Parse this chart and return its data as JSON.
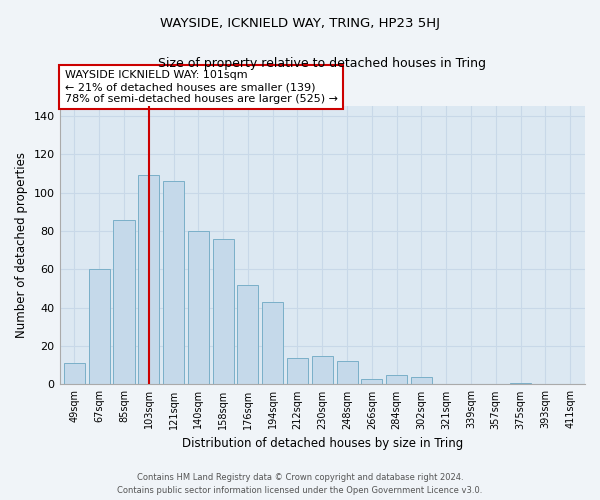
{
  "title": "WAYSIDE, ICKNIELD WAY, TRING, HP23 5HJ",
  "subtitle": "Size of property relative to detached houses in Tring",
  "xlabel": "Distribution of detached houses by size in Tring",
  "ylabel": "Number of detached properties",
  "bar_labels": [
    "49sqm",
    "67sqm",
    "85sqm",
    "103sqm",
    "121sqm",
    "140sqm",
    "158sqm",
    "176sqm",
    "194sqm",
    "212sqm",
    "230sqm",
    "248sqm",
    "266sqm",
    "284sqm",
    "302sqm",
    "321sqm",
    "339sqm",
    "357sqm",
    "375sqm",
    "393sqm",
    "411sqm"
  ],
  "bar_values": [
    11,
    60,
    86,
    109,
    106,
    80,
    76,
    52,
    43,
    14,
    15,
    12,
    3,
    5,
    4,
    0,
    0,
    0,
    1,
    0,
    0
  ],
  "bar_color": "#c5d9ea",
  "bar_edge_color": "#7aafc8",
  "vline_x_idx": 3,
  "vline_color": "#cc0000",
  "annotation_title": "WAYSIDE ICKNIELD WAY: 101sqm",
  "annotation_line1": "← 21% of detached houses are smaller (139)",
  "annotation_line2": "78% of semi-detached houses are larger (525) →",
  "annotation_box_color": "#ffffff",
  "annotation_box_edge": "#cc0000",
  "ylim": [
    0,
    145
  ],
  "yticks": [
    0,
    20,
    40,
    60,
    80,
    100,
    120,
    140
  ],
  "grid_color": "#c8d8e8",
  "plot_bg_color": "#dce8f2",
  "fig_bg_color": "#f0f4f8",
  "footer_line1": "Contains HM Land Registry data © Crown copyright and database right 2024.",
  "footer_line2": "Contains public sector information licensed under the Open Government Licence v3.0."
}
